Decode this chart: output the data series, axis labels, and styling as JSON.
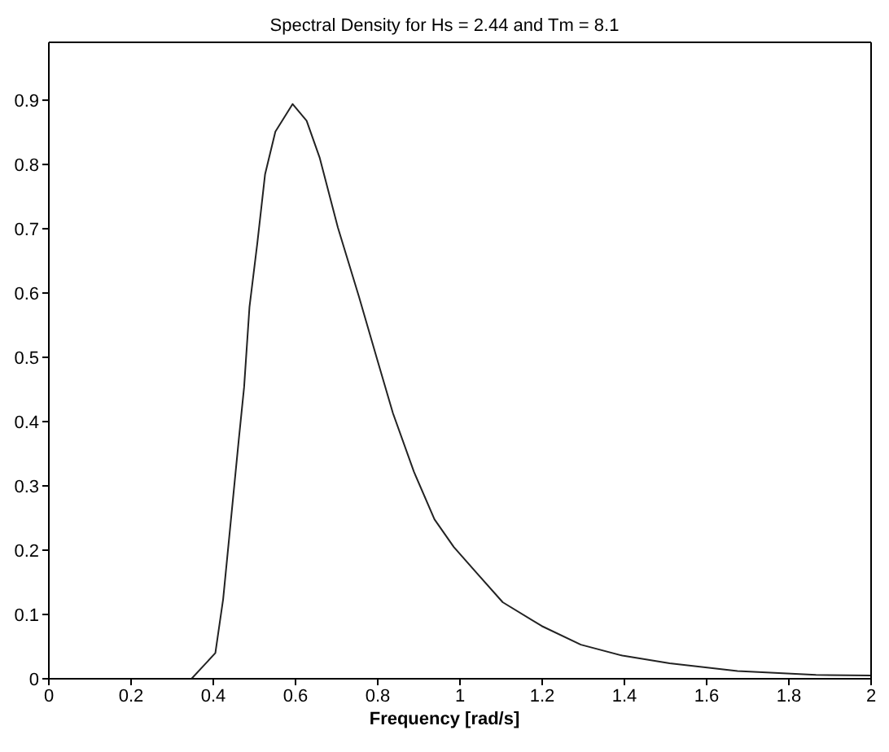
{
  "chart_data": {
    "type": "line",
    "title": "Spectral Density for Hs = 2.44 and Tm = 8.1",
    "xlabel": "Frequency [rad/s]",
    "x": [
      0,
      0.1,
      0.2,
      0.3,
      0.347,
      0.405,
      0.424,
      0.443,
      0.462,
      0.475,
      0.488,
      0.507,
      0.526,
      0.551,
      0.593,
      0.627,
      0.659,
      0.703,
      0.754,
      0.799,
      0.837,
      0.888,
      0.938,
      0.985,
      1.04,
      1.104,
      1.199,
      1.294,
      1.395,
      1.51,
      1.675,
      1.866,
      2
    ],
    "series": [
      {
        "color": "#222222",
        "values": [
          0,
          0,
          0,
          0,
          0,
          0.04,
          0.124,
          0.248,
          0.372,
          0.454,
          0.578,
          0.677,
          0.785,
          0.851,
          0.894,
          0.868,
          0.81,
          0.702,
          0.595,
          0.496,
          0.413,
          0.322,
          0.248,
          0.205,
          0.165,
          0.119,
          0.082,
          0.053,
          0.036,
          0.024,
          0.012,
          0.006,
          0.005
        ]
      }
    ],
    "xlim": [
      0,
      2
    ],
    "xticks": [
      0,
      0.2,
      0.4,
      0.6,
      0.8,
      1,
      1.2,
      1.4,
      1.6,
      1.8,
      2
    ],
    "ylim": [
      0,
      0.99
    ],
    "yticks": [
      0,
      0.1,
      0.2,
      0.3,
      0.4,
      0.5,
      0.6,
      0.7,
      0.8,
      0.9
    ],
    "grid": false,
    "legend": false,
    "marker": "none",
    "line_style": "solid"
  }
}
